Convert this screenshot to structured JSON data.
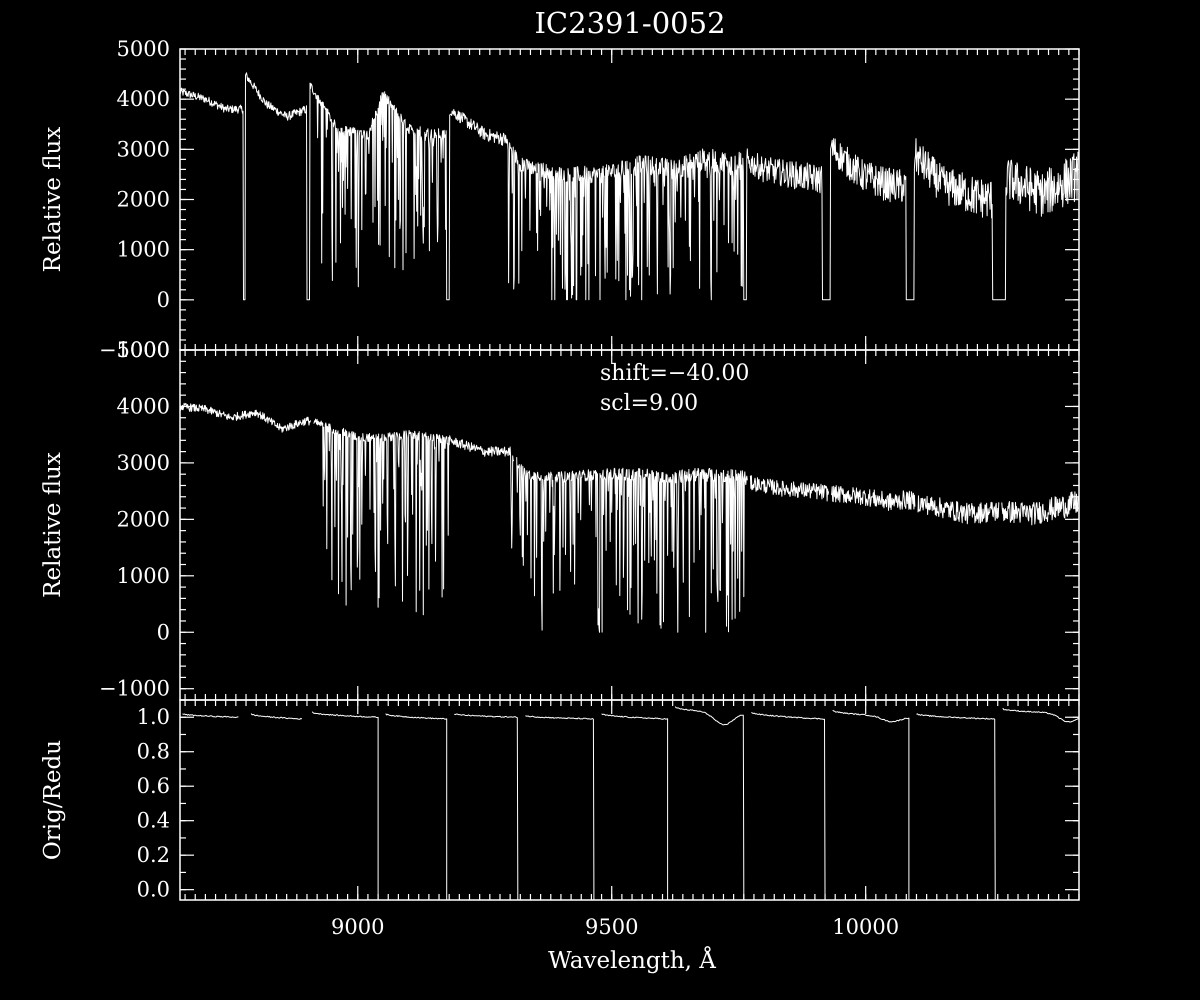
{
  "title": "IC2391-0052",
  "colors": {
    "background": "#000000",
    "foreground": "#ffffff"
  },
  "chart_data": [
    {
      "type": "line",
      "panel": "top",
      "ylabel": "Relative flux",
      "xlim": [
        8650,
        10420
      ],
      "ylim": [
        -1000,
        5000
      ],
      "yticks": [
        -1000,
        0,
        1000,
        2000,
        3000,
        4000,
        5000
      ],
      "y_minor_step": 200,
      "x_minor_step": 20,
      "series": [
        {
          "description": "original spectrum with gaps at order boundaries",
          "x": [
            8650,
            8700,
            8740,
            8775,
            8778,
            8820,
            8860,
            8900,
            8905,
            8960,
            9020,
            9050,
            9100,
            9150,
            9175,
            9180,
            9250,
            9290,
            9320,
            9400,
            9480,
            9560,
            9620,
            9680,
            9750,
            9760,
            9800,
            9880,
            9915,
            9930,
            9990,
            10040,
            10080,
            10095,
            10150,
            10220,
            10250,
            10280,
            10350,
            10420
          ],
          "y": [
            4150,
            4000,
            3800,
            3800,
            4500,
            3900,
            3650,
            3800,
            4300,
            3400,
            3300,
            4100,
            3400,
            3300,
            3300,
            3800,
            3300,
            3200,
            2700,
            2500,
            2500,
            2700,
            2600,
            2800,
            2700,
            2800,
            2600,
            2450,
            2400,
            3050,
            2500,
            2300,
            2250,
            2900,
            2300,
            2050,
            2000,
            2400,
            2100,
            2500
          ],
          "gaps": [
            [
              8775,
              8778
            ],
            [
              8900,
              8905
            ],
            [
              9175,
              9180
            ],
            [
              9760,
              9765
            ],
            [
              9915,
              9930
            ],
            [
              10080,
              10095
            ],
            [
              10250,
              10275
            ]
          ],
          "noise_amp": 80,
          "noise_amp_end": 500,
          "absorption_bands": [
            {
              "x_range": [
                8920,
                9180
              ],
              "depth": 3200
            },
            {
              "x_range": [
                9290,
                9760
              ],
              "depth": 2900
            }
          ]
        }
      ]
    },
    {
      "type": "line",
      "panel": "middle",
      "ylabel": "Relative flux",
      "xlim": [
        8650,
        10420
      ],
      "ylim": [
        -1200,
        5000
      ],
      "yticks": [
        -1000,
        0,
        1000,
        2000,
        3000,
        4000,
        5000
      ],
      "y_minor_step": 200,
      "x_minor_step": 20,
      "annotations": [
        "shift=-40.00",
        "scl=9.00"
      ],
      "series": [
        {
          "description": "reduced spectrum with order segments",
          "x": [
            8650,
            8700,
            8750,
            8800,
            8850,
            8900,
            8920,
            9000,
            9050,
            9100,
            9180,
            9250,
            9300,
            9330,
            9400,
            9480,
            9560,
            9620,
            9680,
            9760,
            9770,
            9830,
            9900,
            9940,
            10000,
            10050,
            10080,
            10100,
            10150,
            10200,
            10260,
            10330,
            10420
          ],
          "y": [
            4000,
            3950,
            3800,
            3900,
            3600,
            3750,
            3700,
            3450,
            3450,
            3500,
            3400,
            3200,
            3200,
            2800,
            2750,
            2800,
            2800,
            2750,
            2800,
            2750,
            2650,
            2550,
            2500,
            2450,
            2400,
            2300,
            2350,
            2300,
            2200,
            2100,
            2150,
            2100,
            2300
          ],
          "breaks": [
            8910,
            9310,
            9770,
            9930,
            10100,
            10265
          ],
          "noise_amp": 70,
          "noise_amp_end": 220,
          "absorption_bands": [
            {
              "x_range": [
                8930,
                9180
              ],
              "depth": 3200
            },
            {
              "x_range": [
                9300,
                9760
              ],
              "depth": 2900
            }
          ]
        }
      ]
    },
    {
      "type": "line",
      "panel": "bottom",
      "ylabel": "Orig/Redu",
      "xlabel": "Wavelength, Å",
      "xlim": [
        8650,
        10420
      ],
      "ylim": [
        -0.06,
        1.1
      ],
      "yticks": [
        0.0,
        0.2,
        0.4,
        0.6,
        0.8,
        1.0
      ],
      "ytick_labels": [
        "0.0",
        "0.2",
        "0.4",
        "0.6",
        "0.8",
        "1.0"
      ],
      "xticks": [
        9000,
        9500,
        10000
      ],
      "y_minor_step": 0.1,
      "x_minor_step": 20,
      "series": [
        {
          "description": "ratio of original to reduced, about 1.0 with drops to 0 at order edges",
          "segments": [
            {
              "x": [
                8655,
                8765
              ],
              "y": [
                1.02,
                1.0
              ]
            },
            {
              "x": [
                8790,
                8890
              ],
              "y": [
                1.02,
                0.99
              ]
            },
            {
              "x": [
                8910,
                9040
              ],
              "y": [
                1.03,
                1.0
              ],
              "drop_at": 9040
            },
            {
              "x": [
                9055,
                9175
              ],
              "y": [
                1.02,
                0.99
              ],
              "drop_at": 9175
            },
            {
              "x": [
                9190,
                9315
              ],
              "y": [
                1.02,
                1.0
              ],
              "drop_at": 9315
            },
            {
              "x": [
                9330,
                9465
              ],
              "y": [
                1.01,
                0.99
              ],
              "drop_at": 9465
            },
            {
              "x": [
                9480,
                9610
              ],
              "y": [
                1.02,
                0.99
              ],
              "drop_at": 9610
            },
            {
              "x": [
                9625,
                9760
              ],
              "y": [
                1.06,
                1.02
              ],
              "dip": [
                9720,
                0.95
              ],
              "drop_at": 9760
            },
            {
              "x": [
                9775,
                9920
              ],
              "y": [
                1.03,
                0.99
              ],
              "drop_at": 9920
            },
            {
              "x": [
                9935,
                10085
              ],
              "y": [
                1.04,
                1.0
              ],
              "dip": [
                10050,
                0.97
              ],
              "drop_at": 10085
            },
            {
              "x": [
                10100,
                10255
              ],
              "y": [
                1.02,
                0.99
              ],
              "drop_at": 10255
            },
            {
              "x": [
                10270,
                10420
              ],
              "y": [
                1.05,
                1.02
              ],
              "dip": [
                10400,
                0.97
              ]
            }
          ]
        }
      ]
    }
  ]
}
